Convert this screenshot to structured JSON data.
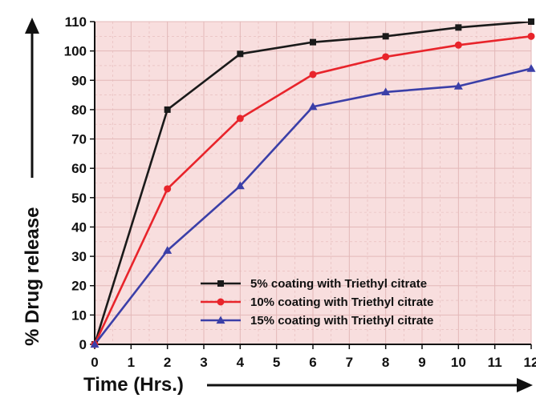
{
  "chart_data": {
    "type": "line",
    "title": "",
    "xlabel": "Time (Hrs.)",
    "ylabel": "% Drug release",
    "xlim": [
      0,
      12
    ],
    "ylim": [
      0,
      110
    ],
    "x_ticks": [
      "0",
      "1",
      "2",
      "3",
      "4",
      "5",
      "6",
      "7",
      "8",
      "9",
      "10",
      "11",
      "12"
    ],
    "y_ticks": [
      "0",
      "10",
      "20",
      "30",
      "40",
      "50",
      "60",
      "70",
      "80",
      "90",
      "100",
      "110"
    ],
    "grid": true,
    "background_color": "#f8dede",
    "grid_color": "#e3b8b8",
    "legend_position": "bottom-right",
    "x": [
      0,
      2,
      4,
      6,
      8,
      10,
      12
    ],
    "series": [
      {
        "name": "5% coating with Triethyl citrate",
        "color": "#1a1a1a",
        "marker": "square",
        "values": [
          0,
          80,
          99,
          103,
          105,
          108,
          110
        ]
      },
      {
        "name": "10% coating with Triethyl citrate",
        "color": "#e8242b",
        "marker": "circle",
        "values": [
          0,
          53,
          77,
          92,
          98,
          102,
          105
        ]
      },
      {
        "name": "15% coating with Triethyl citrate",
        "color": "#3b3fa8",
        "marker": "triangle",
        "values": [
          0,
          32,
          54,
          81,
          86,
          88,
          94
        ]
      }
    ]
  }
}
